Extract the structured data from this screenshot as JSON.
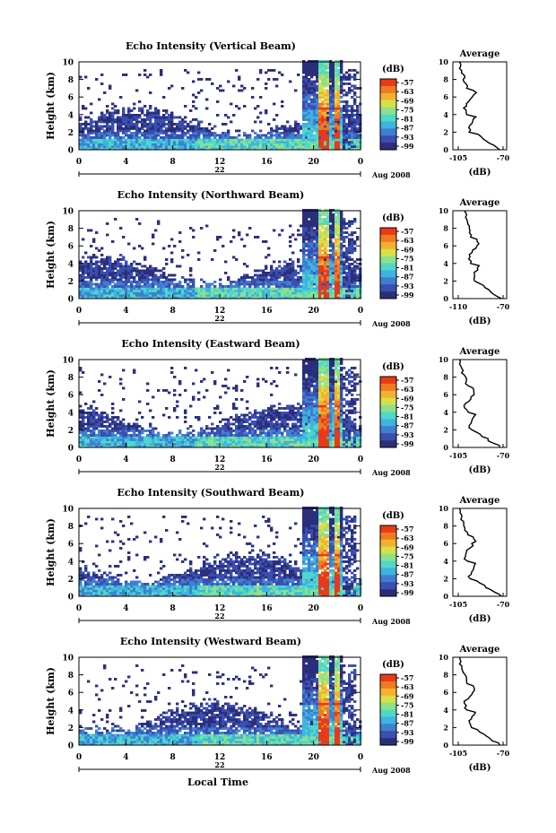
{
  "chart_data": [
    {
      "type": "heatmap",
      "title": "Echo Intensity (Vertical Beam)",
      "ylabel": "Height (km)",
      "y_ticks": [
        "0",
        "2",
        "4",
        "6",
        "8",
        "10"
      ],
      "x_ticks": [
        "0",
        "4",
        "8",
        "12",
        "16",
        "20",
        "0"
      ],
      "date_day": "22",
      "date_label": "Aug 2008",
      "colorbar": {
        "unit": "(dB)",
        "ticks": [
          "-57",
          "-63",
          "-69",
          "-75",
          "-81",
          "-87",
          "-93",
          "-99"
        ]
      },
      "average": {
        "title": "Average",
        "xlabel": "(dB)",
        "x_ticks": [
          "-105",
          "-70"
        ],
        "xlim": [
          -105,
          -70
        ],
        "y_ticks": [
          "0",
          "2",
          "4",
          "6",
          "8",
          "10"
        ]
      }
    },
    {
      "type": "heatmap",
      "title": "Echo Intensity (Northward Beam)",
      "ylabel": "Height (km)",
      "y_ticks": [
        "0",
        "2",
        "4",
        "6",
        "8",
        "10"
      ],
      "x_ticks": [
        "0",
        "4",
        "8",
        "12",
        "16",
        "20",
        "0"
      ],
      "date_day": "22",
      "date_label": "Aug 2008",
      "colorbar": {
        "unit": "(dB)",
        "ticks": [
          "-57",
          "-63",
          "-69",
          "-75",
          "-81",
          "-87",
          "-93",
          "-99"
        ]
      },
      "average": {
        "title": "Average",
        "xlabel": "(dB)",
        "x_ticks": [
          "-110",
          "-70"
        ],
        "xlim": [
          -110,
          -70
        ],
        "y_ticks": [
          "0",
          "2",
          "4",
          "6",
          "8",
          "10"
        ]
      }
    },
    {
      "type": "heatmap",
      "title": "Echo Intensity (Eastward Beam)",
      "ylabel": "Height (km)",
      "y_ticks": [
        "0",
        "2",
        "4",
        "6",
        "8",
        "10"
      ],
      "x_ticks": [
        "0",
        "4",
        "8",
        "12",
        "16",
        "20",
        "0"
      ],
      "date_day": "22",
      "date_label": "Aug 2008",
      "colorbar": {
        "unit": "(dB)",
        "ticks": [
          "-57",
          "-63",
          "-69",
          "-75",
          "-81",
          "-87",
          "-93",
          "-99"
        ]
      },
      "average": {
        "title": "Average",
        "xlabel": "(dB)",
        "x_ticks": [
          "-105",
          "-70"
        ],
        "xlim": [
          -105,
          -70
        ],
        "y_ticks": [
          "0",
          "2",
          "4",
          "6",
          "8",
          "10"
        ]
      }
    },
    {
      "type": "heatmap",
      "title": "Echo Intensity (Southward Beam)",
      "ylabel": "Height (km)",
      "y_ticks": [
        "0",
        "2",
        "4",
        "6",
        "8",
        "10"
      ],
      "x_ticks": [
        "0",
        "4",
        "8",
        "12",
        "16",
        "20",
        "0"
      ],
      "date_day": "22",
      "date_label": "Aug 2008",
      "colorbar": {
        "unit": "(dB)",
        "ticks": [
          "-57",
          "-63",
          "-69",
          "-75",
          "-81",
          "-87",
          "-93",
          "-99"
        ]
      },
      "average": {
        "title": "Average",
        "xlabel": "(dB)",
        "x_ticks": [
          "-105",
          "-70"
        ],
        "xlim": [
          -105,
          -70
        ],
        "y_ticks": [
          "0",
          "2",
          "4",
          "6",
          "8",
          "10"
        ]
      }
    },
    {
      "type": "heatmap",
      "title": "Echo Intensity (Westward Beam)",
      "ylabel": "Height (km)",
      "y_ticks": [
        "0",
        "2",
        "4",
        "6",
        "8",
        "10"
      ],
      "x_ticks": [
        "0",
        "4",
        "8",
        "12",
        "16",
        "20",
        "0"
      ],
      "date_day": "22",
      "date_label": "Aug 2008",
      "xlabel": "Local Time",
      "colorbar": {
        "unit": "(dB)",
        "ticks": [
          "-57",
          "-63",
          "-69",
          "-75",
          "-81",
          "-87",
          "-93",
          "-99"
        ]
      },
      "average": {
        "title": "Average",
        "xlabel": "(dB)",
        "x_ticks": [
          "-105",
          "-70"
        ],
        "xlim": [
          -105,
          -70
        ],
        "y_ticks": [
          "0",
          "2",
          "4",
          "6",
          "8",
          "10"
        ]
      }
    }
  ],
  "colorbar_colors": [
    "#2b2f7a",
    "#3a4fb0",
    "#3f7fd0",
    "#3fb3e0",
    "#4fd8c8",
    "#8fe08a",
    "#d8e048",
    "#f5b030",
    "#f07a20",
    "#e83a18"
  ]
}
